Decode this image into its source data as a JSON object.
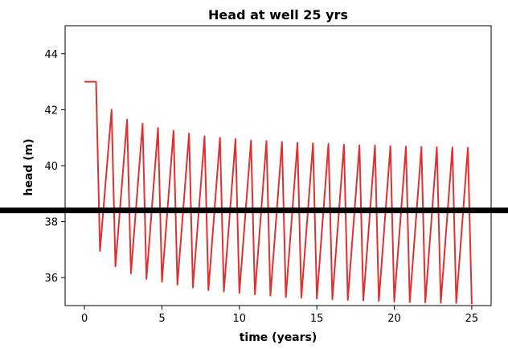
{
  "chart_data": {
    "type": "line",
    "title": "Head at well 25 yrs",
    "xlabel": "time (years)",
    "ylabel": "head (m)",
    "xlim": [
      -1.25,
      26.25
    ],
    "ylim": [
      35.0,
      45.0
    ],
    "xticks": [
      0,
      5,
      10,
      15,
      20,
      25
    ],
    "yticks": [
      36,
      38,
      40,
      42,
      44
    ],
    "grid": false,
    "series": [
      {
        "color": "#e03030",
        "x": [
          0,
          0.75,
          1.0,
          1.75,
          2.0,
          2.75,
          3.0,
          3.75,
          4.0,
          4.75,
          5.0,
          5.75,
          6.0,
          6.75,
          7.0,
          7.75,
          8.0,
          8.75,
          9.0,
          9.75,
          10.0,
          10.75,
          11.0,
          11.75,
          12.0,
          12.75,
          13.0,
          13.75,
          14.0,
          14.75,
          15.0,
          15.75,
          16.0,
          16.75,
          17.0,
          17.75,
          18.0,
          18.75,
          19.0,
          19.75,
          20.0,
          20.75,
          21.0,
          21.75,
          22.0,
          22.75,
          23.0,
          23.75,
          24.0,
          24.75,
          25.0
        ],
        "y": [
          43.0,
          43.0,
          36.95,
          42.0,
          36.4,
          41.65,
          36.15,
          41.5,
          35.95,
          41.35,
          35.85,
          41.25,
          35.75,
          41.15,
          35.65,
          41.05,
          35.55,
          41.0,
          35.5,
          40.95,
          35.45,
          40.9,
          35.4,
          40.88,
          35.35,
          40.85,
          35.3,
          40.82,
          35.28,
          40.8,
          35.25,
          40.78,
          35.22,
          40.75,
          35.2,
          40.73,
          35.18,
          40.72,
          35.16,
          40.7,
          35.14,
          40.68,
          35.12,
          40.67,
          35.11,
          40.66,
          35.1,
          40.65,
          35.09,
          40.64,
          35.05
        ]
      }
    ],
    "hline": {
      "y": 38.4,
      "color": "#000000"
    }
  }
}
